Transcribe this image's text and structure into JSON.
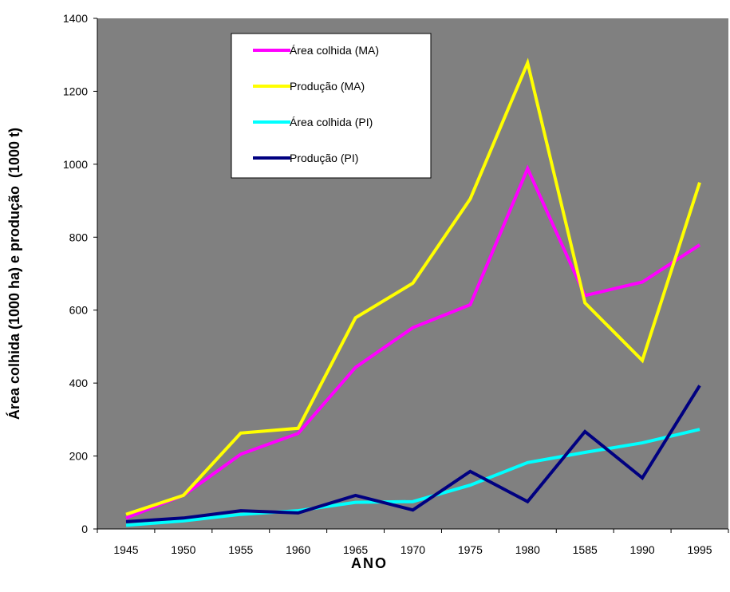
{
  "chart_data": {
    "type": "line",
    "title": "",
    "xlabel": "ANO",
    "ylabel": "Área colhida (1000 ha) e produção  (1000 t)",
    "categories": [
      "1945",
      "1950",
      "1955",
      "1960",
      "1965",
      "1970",
      "1975",
      "1980",
      "1585",
      "1990",
      "1995"
    ],
    "y_ticks": [
      "0",
      "200",
      "400",
      "600",
      "800",
      "1000",
      "1200",
      "1400"
    ],
    "y_tick_values": [
      0,
      200,
      400,
      600,
      800,
      1000,
      1200,
      1400
    ],
    "ylim": [
      0,
      1400
    ],
    "plot_background": "#808080",
    "grid": false,
    "legend_position": "top-left inside plot",
    "series": [
      {
        "name": "Área colhida (MA)",
        "color": "#ff00ff",
        "values": [
          30,
          92,
          205,
          262,
          443,
          552,
          615,
          988,
          640,
          677,
          779
        ]
      },
      {
        "name": "Produção (MA)",
        "color": "#ffff00",
        "values": [
          40,
          92,
          263,
          276,
          579,
          674,
          905,
          1278,
          620,
          462,
          950
        ]
      },
      {
        "name": "Área colhida (PI)",
        "color": "#00ffff",
        "values": [
          10,
          22,
          40,
          50,
          73,
          75,
          120,
          182,
          210,
          236,
          273
        ]
      },
      {
        "name": "Produção (PI)",
        "color": "#000080",
        "values": [
          20,
          30,
          50,
          44,
          92,
          52,
          158,
          75,
          267,
          140,
          393
        ]
      }
    ]
  }
}
